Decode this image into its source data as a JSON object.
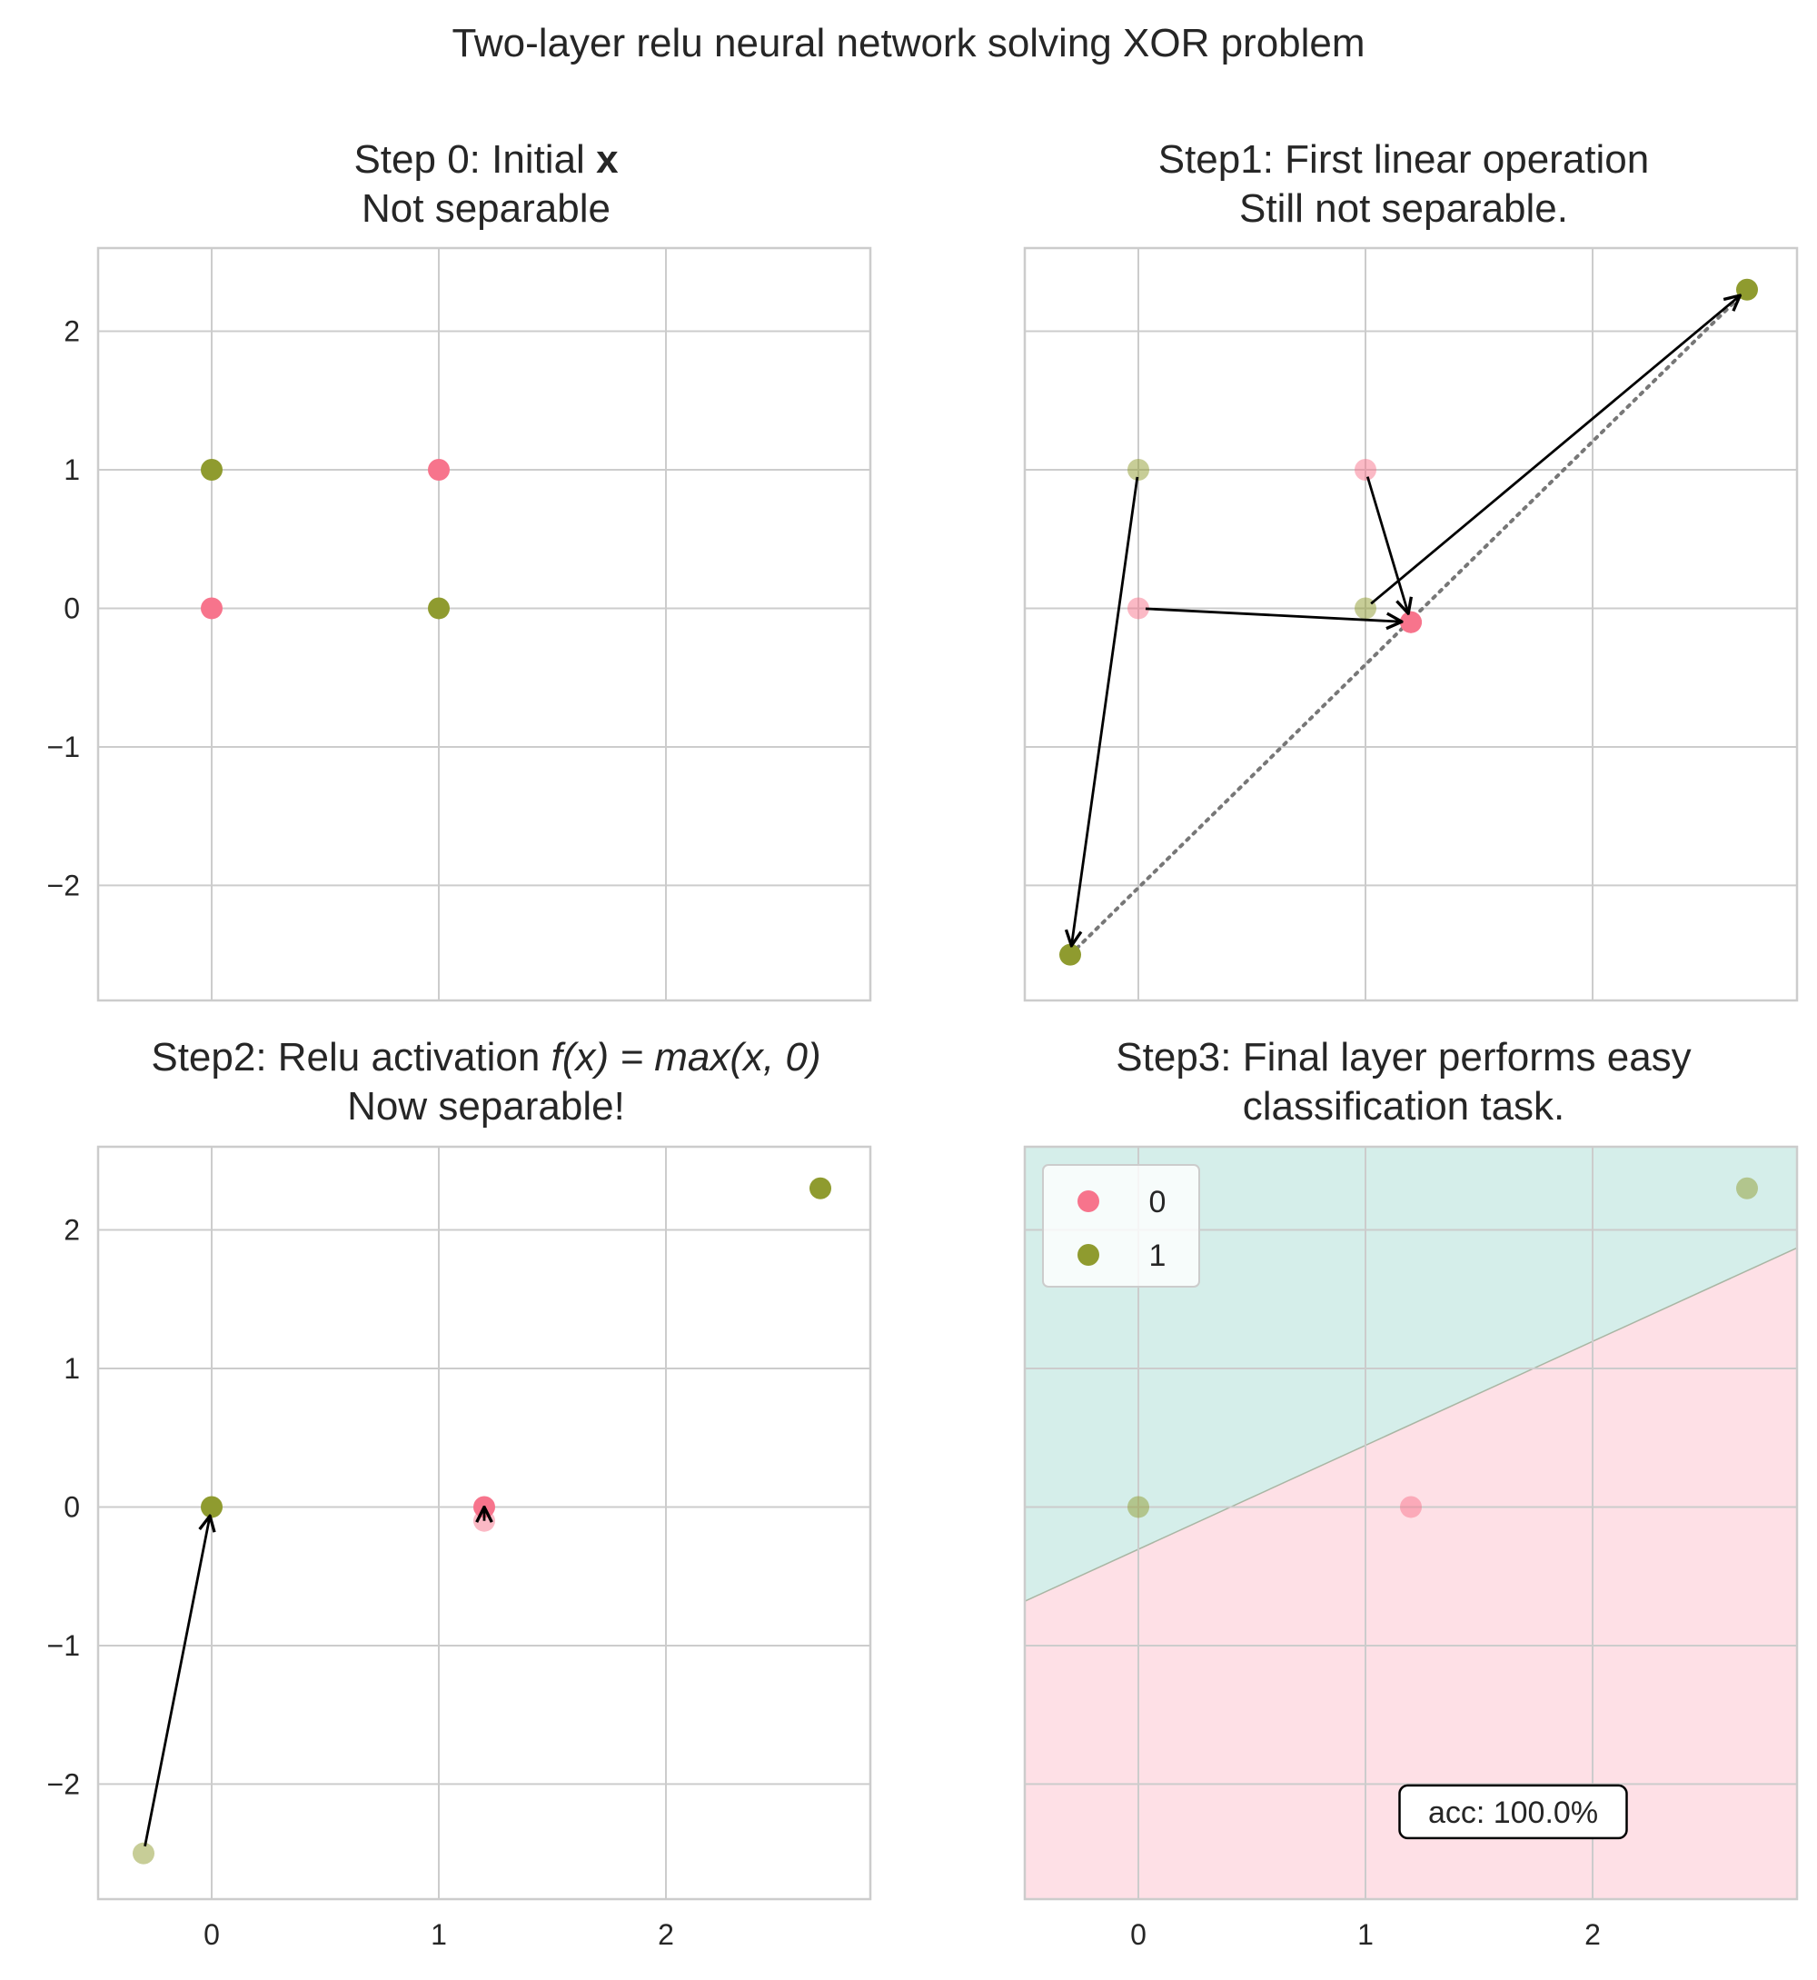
{
  "suptitle": "Two-layer relu neural network solving XOR problem",
  "colors": {
    "class0": "#f7748c",
    "class1": "#8f9b2f",
    "grid": "#cccccc",
    "region_upper": "#d5eeea",
    "region_lower": "#fee0e6",
    "arrow": "#000000",
    "dotted_line": "#777777"
  },
  "chart_data": [
    {
      "type": "scatter",
      "title_line1": "Step 0: Initial ",
      "title_bold": "x",
      "title_line2": "Not separable",
      "xlim": [
        -0.5,
        2.9
      ],
      "ylim": [
        -2.83,
        2.6
      ],
      "xticks": [
        "0",
        "1",
        "2"
      ],
      "yticks": [
        "−2",
        "−1",
        "0",
        "1",
        "2"
      ],
      "grid": true,
      "show_xtick_labels": false,
      "show_ytick_labels": true,
      "series": [
        {
          "points": [
            {
              "x": 0,
              "y": 0,
              "class": 0
            },
            {
              "x": 1,
              "y": 1,
              "class": 0
            }
          ]
        },
        {
          "points": [
            {
              "x": 0,
              "y": 1,
              "class": 1
            },
            {
              "x": 1,
              "y": 0,
              "class": 1
            }
          ]
        }
      ]
    },
    {
      "type": "scatter",
      "title_line1": "Step1: First linear operation",
      "title_line2": "Still not separable.",
      "xlim": [
        -0.5,
        2.9
      ],
      "ylim": [
        -2.83,
        2.6
      ],
      "xticks": [
        "0",
        "1",
        "2"
      ],
      "yticks": [
        "−2",
        "−1",
        "0",
        "1",
        "2"
      ],
      "grid": true,
      "show_xtick_labels": false,
      "show_ytick_labels": false,
      "faded_points": [
        {
          "x": 0,
          "y": 0,
          "class": 0
        },
        {
          "x": 1,
          "y": 1,
          "class": 0
        },
        {
          "x": 0,
          "y": 1,
          "class": 1
        },
        {
          "x": 1,
          "y": 0,
          "class": 1
        }
      ],
      "points": [
        {
          "x": 1.2,
          "y": -0.1,
          "class": 0
        },
        {
          "x": 1.2,
          "y": -0.1,
          "class": 0
        },
        {
          "x": -0.3,
          "y": -2.5,
          "class": 1
        },
        {
          "x": 2.68,
          "y": 2.3,
          "class": 1
        }
      ],
      "arrows": [
        {
          "from": [
            0,
            0
          ],
          "to": [
            1.2,
            -0.1
          ]
        },
        {
          "from": [
            1,
            1
          ],
          "to": [
            1.2,
            -0.1
          ]
        },
        {
          "from": [
            0,
            1
          ],
          "to": [
            -0.3,
            -2.5
          ]
        },
        {
          "from": [
            1,
            0
          ],
          "to": [
            2.68,
            2.3
          ]
        }
      ],
      "dotted_line": {
        "from": [
          -0.3,
          -2.5
        ],
        "to": [
          2.68,
          2.3
        ]
      }
    },
    {
      "type": "scatter",
      "title_line1": "Step2: Relu activation ",
      "title_math": "f(x) = max(x, 0)",
      "title_line2": "Now separable!",
      "xlim": [
        -0.5,
        2.9
      ],
      "ylim": [
        -2.83,
        2.6
      ],
      "xticks": [
        "0",
        "1",
        "2"
      ],
      "yticks": [
        "−2",
        "−1",
        "0",
        "1",
        "2"
      ],
      "grid": true,
      "show_xtick_labels": true,
      "show_ytick_labels": true,
      "faded_points": [
        {
          "x": 1.2,
          "y": -0.1,
          "class": 0
        },
        {
          "x": -0.3,
          "y": -2.5,
          "class": 1
        }
      ],
      "points": [
        {
          "x": 1.2,
          "y": 0,
          "class": 0
        },
        {
          "x": 0,
          "y": 0,
          "class": 1
        },
        {
          "x": 2.68,
          "y": 2.3,
          "class": 1
        }
      ],
      "arrows": [
        {
          "from": [
            -0.3,
            -2.5
          ],
          "to": [
            0,
            0
          ]
        },
        {
          "from": [
            1.2,
            -0.1
          ],
          "to": [
            1.2,
            0
          ]
        }
      ]
    },
    {
      "type": "scatter",
      "title_line1": "Step3: Final layer performs easy",
      "title_line2": "classification task.",
      "xlim": [
        -0.5,
        2.9
      ],
      "ylim": [
        -2.83,
        2.6
      ],
      "xticks": [
        "0",
        "1",
        "2"
      ],
      "yticks": [
        "−2",
        "−1",
        "0",
        "1",
        "2"
      ],
      "grid": true,
      "show_xtick_labels": true,
      "show_ytick_labels": false,
      "decision_boundary": {
        "from": [
          -0.5,
          -0.68
        ],
        "to": [
          2.9,
          1.87
        ]
      },
      "faded_points": [
        {
          "x": 1.2,
          "y": 0,
          "class": 0
        },
        {
          "x": 0,
          "y": 0,
          "class": 1
        },
        {
          "x": 2.68,
          "y": 2.3,
          "class": 1
        }
      ],
      "legend": {
        "placement": "top-left",
        "entries": [
          {
            "label": "0",
            "class": 0
          },
          {
            "label": "1",
            "class": 1
          }
        ]
      },
      "annotation": {
        "text": "acc: 100.0%",
        "x": 1.65,
        "y": -2.2
      }
    }
  ]
}
